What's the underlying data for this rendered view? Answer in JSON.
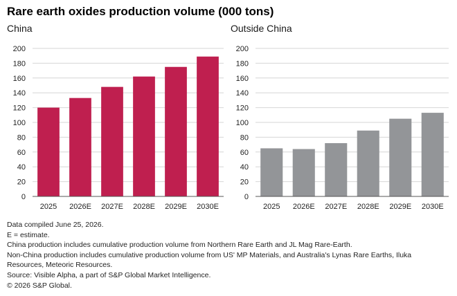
{
  "title": "Rare earth oxides production volume (000 tons)",
  "chart_data": [
    {
      "type": "bar",
      "subtitle": "China",
      "categories": [
        "2025",
        "2026E",
        "2027E",
        "2028E",
        "2029E",
        "2030E"
      ],
      "values": [
        120,
        133,
        148,
        162,
        175,
        189
      ],
      "ylim": [
        0,
        200
      ],
      "yticks": [
        0,
        20,
        40,
        60,
        80,
        100,
        120,
        140,
        160,
        180,
        200
      ],
      "grid": true,
      "color": "#bf1f4f"
    },
    {
      "type": "bar",
      "subtitle": "Outside China",
      "categories": [
        "2025",
        "2026E",
        "2027E",
        "2028E",
        "2029E",
        "2030E"
      ],
      "values": [
        65,
        64,
        72,
        89,
        105,
        113
      ],
      "ylim": [
        0,
        200
      ],
      "yticks": [
        0,
        20,
        40,
        60,
        80,
        100,
        120,
        140,
        160,
        180,
        200
      ],
      "grid": true,
      "color": "#939598"
    }
  ],
  "notes": [
    "Data compiled June 25, 2026.",
    "E = estimate.",
    "China production includes cumulative production volume from Northern Rare Earth and JL Mag Rare-Earth.",
    "Non-China production includes cumulative production volume from US' MP Materials, and Australia's Lynas Rare Earths, Iluka Resources, Meteoric Resources.",
    "Source: Visible Alpha, a part of S&P Global Market Intelligence.",
    "© 2026 S&P Global."
  ]
}
